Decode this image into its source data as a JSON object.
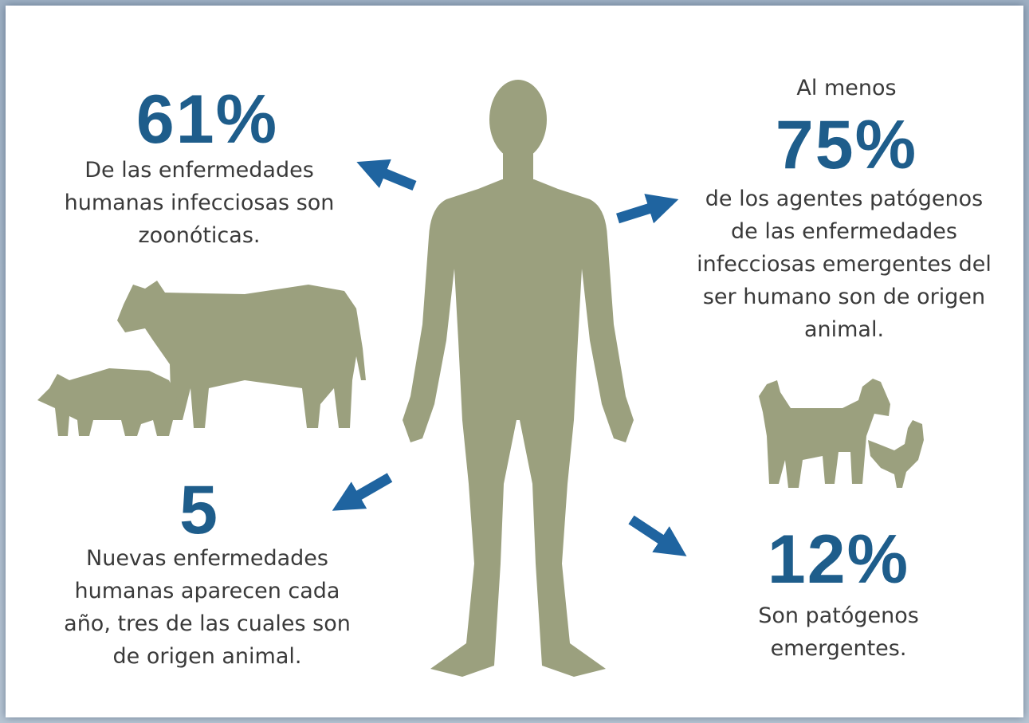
{
  "stats": [
    {
      "figure": "61%",
      "lines": [
        "De las enfermedades",
        "humanas infecciosas son",
        "zoonóticas."
      ]
    },
    {
      "intro": "Al menos",
      "figure": "75%",
      "lines": [
        "de los agentes patógenos",
        "de las enfermedades",
        "infecciosas emergentes del",
        "ser humano son de origen",
        "animal."
      ]
    },
    {
      "figure": "5",
      "lines": [
        "Nuevas enfermedades",
        "humanas aparecen cada",
        "año, tres de las cuales son",
        "de origen animal."
      ]
    },
    {
      "figure": "12%",
      "lines": [
        "Son patógenos",
        "emergentes."
      ]
    }
  ]
}
